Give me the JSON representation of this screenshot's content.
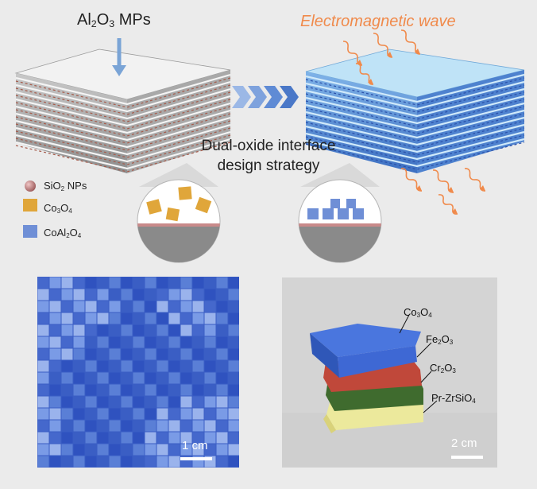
{
  "top": {
    "mps_label": {
      "prefix": "Al",
      "sub1": "2",
      "mid": "O",
      "sub2": "3",
      "suffix": " MPs"
    },
    "em_wave_label": "Electromagnetic wave",
    "strategy_line1": "Dual-oxide interface",
    "strategy_line2": "design strategy",
    "legend": [
      {
        "icon": "sio2-nanoparticle-icon",
        "prefix": "SiO",
        "sub1": "2",
        "mid": " NPs",
        "sub2": "",
        "suffix": ""
      },
      {
        "icon": "co3o4-particle-icon",
        "prefix": "Co",
        "sub1": "3",
        "mid": "O",
        "sub2": "4",
        "suffix": ""
      },
      {
        "icon": "coal2o4-particle-icon",
        "prefix": "CoAl",
        "sub1": "2",
        "mid": "O",
        "sub2": "4",
        "suffix": ""
      }
    ]
  },
  "bottom": {
    "mosaic": {
      "scale_label": "1 cm",
      "base_color": "#3a5ec4",
      "light_color": "#7a9be6"
    },
    "photo": {
      "scale_label": "2 cm",
      "layers": [
        {
          "prefix": "Co",
          "sub1": "3",
          "mid": "O",
          "sub2": "4",
          "color": "#3e68d4"
        },
        {
          "prefix": "Fe",
          "sub1": "2",
          "mid": "O",
          "sub2": "3",
          "color": "#c0483a"
        },
        {
          "prefix": "Cr",
          "sub1": "2",
          "mid": "O",
          "sub2": "3",
          "color": "#3f6b2e"
        },
        {
          "prefix": "Pr-ZrSiO",
          "sub1": "4",
          "mid": "",
          "sub2": "",
          "suffix": "",
          "color": "#ece99c"
        }
      ]
    }
  },
  "colors": {
    "arrow": "#4a78c8",
    "wave": "#f08a4b",
    "em_text": "#f08a4b"
  }
}
